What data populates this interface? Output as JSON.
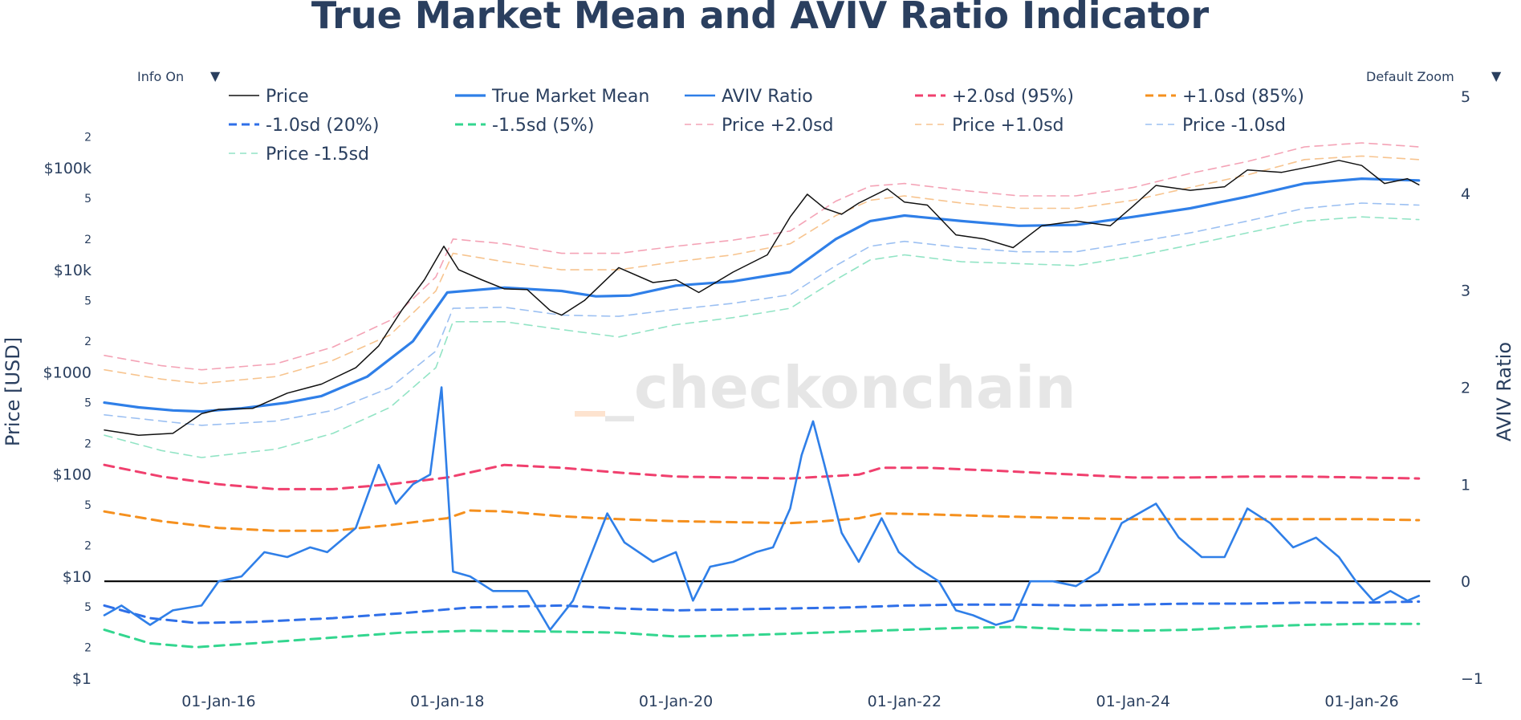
{
  "chart_data": {
    "type": "line",
    "title": "True Market Mean and AVIV Ratio Indicator",
    "watermark": "_checkonchain",
    "controls": {
      "info": "Info On",
      "zoom": "Default Zoom",
      "arrow": "▼"
    },
    "y_left": {
      "title": "Price [USD]",
      "scale": "log",
      "range": [
        1,
        500000
      ],
      "major_ticks": [
        {
          "value": 1,
          "label": "$1"
        },
        {
          "value": 10,
          "label": "$10"
        },
        {
          "value": 100,
          "label": "$100"
        },
        {
          "value": 1000,
          "label": "$1000"
        },
        {
          "value": 10000,
          "label": "$10k"
        },
        {
          "value": 100000,
          "label": "$100k"
        }
      ],
      "minor_ticks": [
        {
          "value": 2,
          "label": "2"
        },
        {
          "value": 5,
          "label": "5"
        },
        {
          "value": 20,
          "label": "2"
        },
        {
          "value": 50,
          "label": "5"
        },
        {
          "value": 200,
          "label": "2"
        },
        {
          "value": 500,
          "label": "5"
        },
        {
          "value": 2000,
          "label": "2"
        },
        {
          "value": 5000,
          "label": "5"
        },
        {
          "value": 20000,
          "label": "2"
        },
        {
          "value": 50000,
          "label": "5"
        },
        {
          "value": 200000,
          "label": "2"
        }
      ]
    },
    "y_right": {
      "title": "AVIV Ratio",
      "scale": "linear",
      "range": [
        -1,
        5
      ],
      "ticks": [
        {
          "value": -1,
          "label": "−1"
        },
        {
          "value": 0,
          "label": "0"
        },
        {
          "value": 1,
          "label": "1"
        },
        {
          "value": 2,
          "label": "2"
        },
        {
          "value": 3,
          "label": "3"
        },
        {
          "value": 4,
          "label": "4"
        },
        {
          "value": 5,
          "label": "5"
        }
      ]
    },
    "x": {
      "range": [
        2015.0,
        2026.6
      ],
      "ticks": [
        {
          "value": 2016,
          "label": "01-Jan-16"
        },
        {
          "value": 2018,
          "label": "01-Jan-18"
        },
        {
          "value": 2020,
          "label": "01-Jan-20"
        },
        {
          "value": 2022,
          "label": "01-Jan-22"
        },
        {
          "value": 2024,
          "label": "01-Jan-24"
        },
        {
          "value": 2026,
          "label": "01-Jan-26"
        }
      ]
    },
    "colors": {
      "price": "#111111",
      "tmm": "#2f7fe8",
      "aviv": "#2f7fe8",
      "sd2": "#f0406e",
      "sd1": "#f5901e",
      "sdm1": "#2f6fe8",
      "sdm15": "#33d68f",
      "price_sd2": "#f4a3b6",
      "price_sd1": "#f7c48f",
      "price_sdm1": "#9cc0f2",
      "price_sdm15": "#92e4c5",
      "zero_line": "#000000"
    },
    "legend": [
      {
        "key": "price",
        "label": "Price",
        "style": "solid-thin"
      },
      {
        "key": "tmm",
        "label": "True Market Mean",
        "style": "solid"
      },
      {
        "key": "aviv",
        "label": "AVIV Ratio",
        "style": "solid"
      },
      {
        "key": "sd2",
        "label": "+2.0sd (95%)",
        "style": "dash"
      },
      {
        "key": "sd1",
        "label": "+1.0sd (85%)",
        "style": "dash"
      },
      {
        "key": "sdm1",
        "label": "-1.0sd (20%)",
        "style": "dash"
      },
      {
        "key": "sdm15",
        "label": "-1.5sd (5%)",
        "style": "dash"
      },
      {
        "key": "price_sd2",
        "label": "Price +2.0sd",
        "style": "dash-thin"
      },
      {
        "key": "price_sd1",
        "label": "Price +1.0sd",
        "style": "dash-thin"
      },
      {
        "key": "price_sdm1",
        "label": "Price -1.0sd",
        "style": "dash-thin"
      },
      {
        "key": "price_sdm15",
        "label": "Price -1.5sd",
        "style": "dash-thin"
      }
    ],
    "series": [
      {
        "key": "price",
        "axis": "left",
        "x": [
          2015.0,
          2015.3,
          2015.6,
          2015.85,
          2016.0,
          2016.3,
          2016.6,
          2016.9,
          2017.2,
          2017.4,
          2017.6,
          2017.8,
          2017.97,
          2018.1,
          2018.3,
          2018.5,
          2018.7,
          2018.9,
          2019.0,
          2019.2,
          2019.5,
          2019.8,
          2020.0,
          2020.2,
          2020.5,
          2020.8,
          2021.0,
          2021.15,
          2021.3,
          2021.45,
          2021.6,
          2021.85,
          2022.0,
          2022.2,
          2022.45,
          2022.7,
          2022.95,
          2023.2,
          2023.5,
          2023.8,
          2024.0,
          2024.2,
          2024.5,
          2024.8,
          2025.0,
          2025.3,
          2025.6,
          2025.8,
          2026.0,
          2026.2,
          2026.4,
          2026.5
        ],
        "y": [
          270,
          240,
          250,
          390,
          430,
          440,
          620,
          760,
          1100,
          1800,
          4000,
          8000,
          17000,
          10000,
          8000,
          6500,
          6400,
          4000,
          3600,
          5000,
          10500,
          7500,
          8000,
          6000,
          9500,
          14000,
          33000,
          55000,
          40000,
          35000,
          45000,
          62000,
          46000,
          43000,
          22000,
          20000,
          16500,
          27000,
          30000,
          27000,
          42000,
          67000,
          60000,
          65000,
          95000,
          90000,
          105000,
          118000,
          105000,
          70000,
          78000,
          68000
        ]
      },
      {
        "key": "tmm",
        "axis": "left",
        "x": [
          2015.0,
          2015.3,
          2015.6,
          2015.85,
          2016.2,
          2016.6,
          2016.9,
          2017.3,
          2017.7,
          2018.0,
          2018.5,
          2019.0,
          2019.3,
          2019.6,
          2020.0,
          2020.5,
          2021.0,
          2021.4,
          2021.7,
          2022.0,
          2022.5,
          2023.0,
          2023.5,
          2024.0,
          2024.5,
          2025.0,
          2025.5,
          2026.0,
          2026.5
        ],
        "y": [
          500,
          450,
          420,
          410,
          440,
          500,
          580,
          900,
          2000,
          6000,
          6700,
          6200,
          5500,
          5600,
          7000,
          7700,
          9500,
          20000,
          30000,
          34000,
          30000,
          27000,
          27500,
          33000,
          40000,
          52000,
          70000,
          78000,
          75000
        ]
      },
      {
        "key": "aviv",
        "axis": "right",
        "x": [
          2015.0,
          2015.15,
          2015.4,
          2015.6,
          2015.85,
          2016.0,
          2016.2,
          2016.4,
          2016.6,
          2016.8,
          2016.95,
          2017.2,
          2017.4,
          2017.55,
          2017.7,
          2017.85,
          2017.95,
          2018.05,
          2018.2,
          2018.4,
          2018.7,
          2018.9,
          2019.1,
          2019.4,
          2019.55,
          2019.8,
          2020.0,
          2020.15,
          2020.3,
          2020.5,
          2020.7,
          2020.85,
          2021.0,
          2021.1,
          2021.2,
          2021.3,
          2021.45,
          2021.6,
          2021.8,
          2021.95,
          2022.1,
          2022.3,
          2022.45,
          2022.6,
          2022.8,
          2022.95,
          2023.1,
          2023.3,
          2023.5,
          2023.7,
          2023.9,
          2024.2,
          2024.4,
          2024.6,
          2024.8,
          2025.0,
          2025.2,
          2025.4,
          2025.6,
          2025.8,
          2025.95,
          2026.1,
          2026.25,
          2026.4,
          2026.5
        ],
        "y": [
          -0.35,
          -0.25,
          -0.45,
          -0.3,
          -0.25,
          0.0,
          0.05,
          0.3,
          0.25,
          0.35,
          0.3,
          0.55,
          1.2,
          0.8,
          1.0,
          1.1,
          2.0,
          0.1,
          0.05,
          -0.1,
          -0.1,
          -0.5,
          -0.2,
          0.7,
          0.4,
          0.2,
          0.3,
          -0.2,
          0.15,
          0.2,
          0.3,
          0.35,
          0.75,
          1.3,
          1.65,
          1.2,
          0.5,
          0.2,
          0.65,
          0.3,
          0.15,
          0.0,
          -0.3,
          -0.35,
          -0.45,
          -0.4,
          0.0,
          0.0,
          -0.05,
          0.1,
          0.6,
          0.8,
          0.45,
          0.25,
          0.25,
          0.75,
          0.6,
          0.35,
          0.45,
          0.25,
          0.0,
          -0.2,
          -0.1,
          -0.2,
          -0.15
        ]
      },
      {
        "key": "sd2",
        "axis": "right",
        "x": [
          2015.0,
          2015.5,
          2016.0,
          2016.5,
          2017.0,
          2017.5,
          2018.0,
          2018.5,
          2019.0,
          2019.5,
          2020.0,
          2020.5,
          2021.0,
          2021.3,
          2021.6,
          2021.8,
          2022.2,
          2022.8,
          2023.5,
          2024.0,
          2024.5,
          2025.0,
          2025.5,
          2026.0,
          2026.5
        ],
        "y": [
          1.2,
          1.08,
          1.0,
          0.95,
          0.95,
          1.0,
          1.07,
          1.2,
          1.17,
          1.12,
          1.08,
          1.07,
          1.06,
          1.08,
          1.1,
          1.17,
          1.17,
          1.14,
          1.1,
          1.07,
          1.07,
          1.08,
          1.08,
          1.07,
          1.06
        ]
      },
      {
        "key": "sd1",
        "axis": "right",
        "x": [
          2015.0,
          2015.5,
          2016.0,
          2016.5,
          2017.0,
          2017.5,
          2018.0,
          2018.2,
          2018.5,
          2019.0,
          2019.5,
          2020.0,
          2020.5,
          2021.0,
          2021.3,
          2021.6,
          2021.8,
          2022.2,
          2022.8,
          2023.5,
          2024.0,
          2024.5,
          2025.0,
          2025.5,
          2026.0,
          2026.5
        ],
        "y": [
          0.72,
          0.62,
          0.55,
          0.52,
          0.52,
          0.58,
          0.65,
          0.73,
          0.72,
          0.67,
          0.64,
          0.62,
          0.61,
          0.6,
          0.62,
          0.65,
          0.7,
          0.69,
          0.67,
          0.65,
          0.64,
          0.64,
          0.64,
          0.64,
          0.64,
          0.63
        ]
      },
      {
        "key": "sdm1",
        "axis": "right",
        "x": [
          2015.0,
          2015.4,
          2015.8,
          2016.3,
          2017.0,
          2017.6,
          2018.2,
          2019.0,
          2019.5,
          2020.0,
          2020.5,
          2021.0,
          2021.5,
          2022.0,
          2022.5,
          2023.0,
          2023.5,
          2024.0,
          2024.5,
          2025.0,
          2025.5,
          2026.0,
          2026.5
        ],
        "y": [
          -0.25,
          -0.38,
          -0.43,
          -0.42,
          -0.38,
          -0.33,
          -0.27,
          -0.25,
          -0.28,
          -0.3,
          -0.29,
          -0.28,
          -0.27,
          -0.25,
          -0.24,
          -0.24,
          -0.25,
          -0.24,
          -0.23,
          -0.23,
          -0.22,
          -0.22,
          -0.21
        ]
      },
      {
        "key": "sdm15",
        "axis": "right",
        "x": [
          2015.0,
          2015.4,
          2015.8,
          2016.3,
          2017.0,
          2017.6,
          2018.2,
          2019.0,
          2019.5,
          2020.0,
          2020.5,
          2021.0,
          2021.5,
          2022.0,
          2022.5,
          2023.0,
          2023.5,
          2024.0,
          2024.5,
          2025.0,
          2025.5,
          2026.0,
          2026.5
        ],
        "y": [
          -0.5,
          -0.64,
          -0.68,
          -0.64,
          -0.58,
          -0.53,
          -0.51,
          -0.52,
          -0.53,
          -0.57,
          -0.56,
          -0.54,
          -0.52,
          -0.5,
          -0.48,
          -0.47,
          -0.5,
          -0.51,
          -0.5,
          -0.47,
          -0.45,
          -0.44,
          -0.44
        ]
      },
      {
        "key": "price_sd2",
        "axis": "left",
        "x": [
          2015.0,
          2015.5,
          2015.85,
          2016.5,
          2017.0,
          2017.5,
          2017.9,
          2018.05,
          2018.5,
          2019.0,
          2019.5,
          2020.0,
          2020.5,
          2021.0,
          2021.4,
          2021.7,
          2022.0,
          2022.5,
          2023.0,
          2023.5,
          2024.0,
          2024.5,
          2025.0,
          2025.5,
          2026.0,
          2026.5
        ],
        "y": [
          1450,
          1150,
          1050,
          1200,
          1750,
          3200,
          8500,
          20000,
          18000,
          14500,
          14500,
          17000,
          19500,
          24000,
          47000,
          66000,
          70000,
          60000,
          53000,
          53000,
          64000,
          88000,
          115000,
          160000,
          175000,
          160000
        ]
      },
      {
        "key": "price_sd1",
        "axis": "left",
        "x": [
          2015.0,
          2015.5,
          2015.85,
          2016.5,
          2017.0,
          2017.5,
          2017.9,
          2018.05,
          2018.5,
          2019.0,
          2019.5,
          2020.0,
          2020.5,
          2021.0,
          2021.4,
          2021.7,
          2022.0,
          2022.5,
          2023.0,
          2023.5,
          2024.0,
          2024.5,
          2025.0,
          2025.5,
          2026.0,
          2026.5
        ],
        "y": [
          1050,
          850,
          770,
          900,
          1300,
          2300,
          6200,
          14500,
          12000,
          10000,
          10000,
          12000,
          14000,
          18000,
          34000,
          48000,
          53000,
          45000,
          40000,
          40000,
          48000,
          64000,
          85000,
          120000,
          130000,
          120000
        ]
      },
      {
        "key": "price_sdm1",
        "axis": "left",
        "x": [
          2015.0,
          2015.5,
          2015.85,
          2016.5,
          2017.0,
          2017.5,
          2017.9,
          2018.05,
          2018.5,
          2019.0,
          2019.5,
          2020.0,
          2020.5,
          2021.0,
          2021.4,
          2021.7,
          2022.0,
          2022.5,
          2023.0,
          2023.5,
          2024.0,
          2024.5,
          2025.0,
          2025.5,
          2026.0,
          2026.5
        ],
        "y": [
          380,
          330,
          300,
          330,
          420,
          700,
          1600,
          4200,
          4300,
          3600,
          3500,
          4100,
          4700,
          5700,
          11000,
          17000,
          19000,
          16500,
          15000,
          15000,
          18500,
          23000,
          30000,
          40000,
          45000,
          43000
        ]
      },
      {
        "key": "price_sdm15",
        "axis": "left",
        "x": [
          2015.0,
          2015.5,
          2015.85,
          2016.5,
          2017.0,
          2017.5,
          2017.9,
          2018.05,
          2018.5,
          2019.0,
          2019.5,
          2020.0,
          2020.5,
          2021.0,
          2021.4,
          2021.7,
          2022.0,
          2022.5,
          2023.0,
          2023.5,
          2024.0,
          2024.5,
          2025.0,
          2025.5,
          2026.0,
          2026.5
        ],
        "y": [
          240,
          170,
          145,
          175,
          250,
          450,
          1100,
          3100,
          3100,
          2600,
          2200,
          2900,
          3400,
          4200,
          8000,
          12500,
          14000,
          12000,
          11500,
          11000,
          13500,
          17500,
          23000,
          30000,
          33000,
          31000
        ]
      }
    ],
    "reference_lines": [
      {
        "axis": "right",
        "y": 0
      }
    ]
  }
}
